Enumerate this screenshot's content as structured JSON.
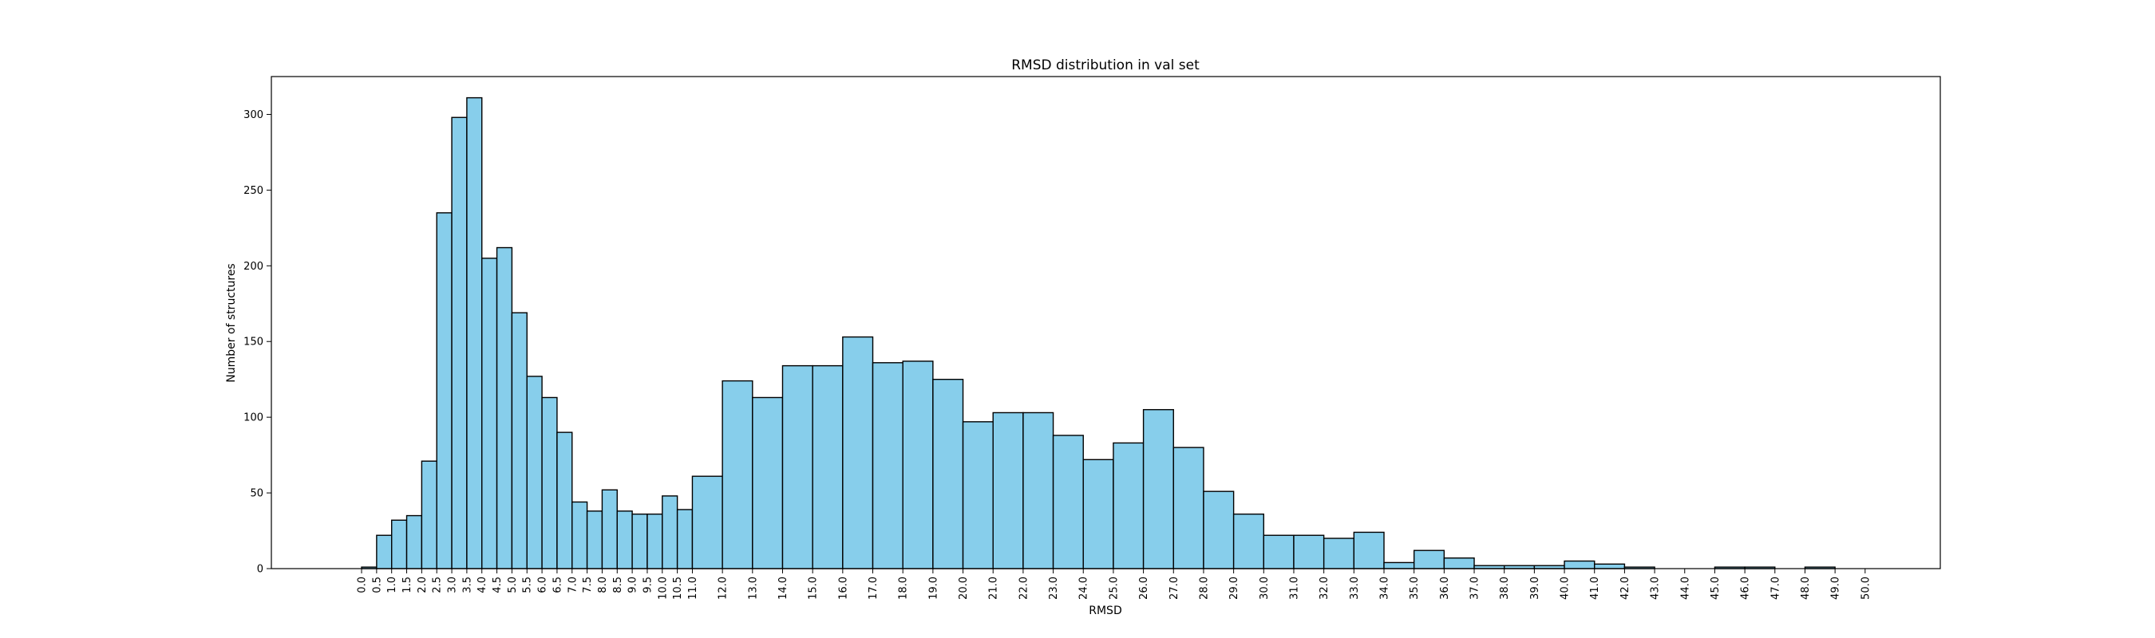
{
  "chart_data": {
    "type": "bar",
    "title": "RMSD distribution in val set",
    "xlabel": "RMSD",
    "ylabel": "Number of structures",
    "ylim": [
      0,
      325
    ],
    "xlim": [
      -3.0,
      52.5
    ],
    "grid": false,
    "y_ticks": [
      0,
      50,
      100,
      150,
      200,
      250,
      300
    ],
    "x_ticks": [
      0.0,
      0.5,
      1.0,
      1.5,
      2.0,
      2.5,
      3.0,
      3.5,
      4.0,
      4.5,
      5.0,
      5.5,
      6.0,
      6.5,
      7.0,
      7.5,
      8.0,
      8.5,
      9.0,
      9.5,
      10.0,
      10.5,
      11.0,
      12.0,
      13.0,
      14.0,
      15.0,
      16.0,
      17.0,
      18.0,
      19.0,
      20.0,
      21.0,
      22.0,
      23.0,
      24.0,
      25.0,
      26.0,
      27.0,
      28.0,
      29.0,
      30.0,
      31.0,
      32.0,
      33.0,
      34.0,
      35.0,
      36.0,
      37.0,
      38.0,
      39.0,
      40.0,
      41.0,
      42.0,
      43.0,
      44.0,
      45.0,
      46.0,
      47.0,
      48.0,
      49.0,
      50.0
    ],
    "bins": [
      {
        "start": 0.0,
        "end": 0.5,
        "value": 1
      },
      {
        "start": 0.5,
        "end": 1.0,
        "value": 22
      },
      {
        "start": 1.0,
        "end": 1.5,
        "value": 32
      },
      {
        "start": 1.5,
        "end": 2.0,
        "value": 35
      },
      {
        "start": 2.0,
        "end": 2.5,
        "value": 71
      },
      {
        "start": 2.5,
        "end": 3.0,
        "value": 235
      },
      {
        "start": 3.0,
        "end": 3.5,
        "value": 298
      },
      {
        "start": 3.5,
        "end": 4.0,
        "value": 311
      },
      {
        "start": 4.0,
        "end": 4.5,
        "value": 205
      },
      {
        "start": 4.5,
        "end": 5.0,
        "value": 212
      },
      {
        "start": 5.0,
        "end": 5.5,
        "value": 169
      },
      {
        "start": 5.5,
        "end": 6.0,
        "value": 127
      },
      {
        "start": 6.0,
        "end": 6.5,
        "value": 113
      },
      {
        "start": 6.5,
        "end": 7.0,
        "value": 90
      },
      {
        "start": 7.0,
        "end": 7.5,
        "value": 44
      },
      {
        "start": 7.5,
        "end": 8.0,
        "value": 38
      },
      {
        "start": 8.0,
        "end": 8.5,
        "value": 52
      },
      {
        "start": 8.5,
        "end": 9.0,
        "value": 38
      },
      {
        "start": 9.0,
        "end": 9.5,
        "value": 36
      },
      {
        "start": 9.5,
        "end": 10.0,
        "value": 36
      },
      {
        "start": 10.0,
        "end": 10.5,
        "value": 48
      },
      {
        "start": 10.5,
        "end": 11.0,
        "value": 39
      },
      {
        "start": 11.0,
        "end": 12.0,
        "value": 61
      },
      {
        "start": 12.0,
        "end": 13.0,
        "value": 124
      },
      {
        "start": 13.0,
        "end": 14.0,
        "value": 113
      },
      {
        "start": 14.0,
        "end": 15.0,
        "value": 134
      },
      {
        "start": 15.0,
        "end": 16.0,
        "value": 134
      },
      {
        "start": 16.0,
        "end": 17.0,
        "value": 153
      },
      {
        "start": 17.0,
        "end": 18.0,
        "value": 136
      },
      {
        "start": 18.0,
        "end": 19.0,
        "value": 137
      },
      {
        "start": 19.0,
        "end": 20.0,
        "value": 125
      },
      {
        "start": 20.0,
        "end": 21.0,
        "value": 97
      },
      {
        "start": 21.0,
        "end": 22.0,
        "value": 103
      },
      {
        "start": 22.0,
        "end": 23.0,
        "value": 103
      },
      {
        "start": 23.0,
        "end": 24.0,
        "value": 88
      },
      {
        "start": 24.0,
        "end": 25.0,
        "value": 72
      },
      {
        "start": 25.0,
        "end": 26.0,
        "value": 83
      },
      {
        "start": 26.0,
        "end": 27.0,
        "value": 105
      },
      {
        "start": 27.0,
        "end": 28.0,
        "value": 80
      },
      {
        "start": 28.0,
        "end": 29.0,
        "value": 51
      },
      {
        "start": 29.0,
        "end": 30.0,
        "value": 36
      },
      {
        "start": 30.0,
        "end": 31.0,
        "value": 22
      },
      {
        "start": 31.0,
        "end": 32.0,
        "value": 22
      },
      {
        "start": 32.0,
        "end": 33.0,
        "value": 20
      },
      {
        "start": 33.0,
        "end": 34.0,
        "value": 24
      },
      {
        "start": 34.0,
        "end": 35.0,
        "value": 4
      },
      {
        "start": 35.0,
        "end": 36.0,
        "value": 12
      },
      {
        "start": 36.0,
        "end": 37.0,
        "value": 7
      },
      {
        "start": 37.0,
        "end": 38.0,
        "value": 2
      },
      {
        "start": 38.0,
        "end": 39.0,
        "value": 2
      },
      {
        "start": 39.0,
        "end": 40.0,
        "value": 2
      },
      {
        "start": 40.0,
        "end": 41.0,
        "value": 5
      },
      {
        "start": 41.0,
        "end": 42.0,
        "value": 3
      },
      {
        "start": 42.0,
        "end": 43.0,
        "value": 1
      },
      {
        "start": 43.0,
        "end": 44.0,
        "value": 0
      },
      {
        "start": 44.0,
        "end": 45.0,
        "value": 0
      },
      {
        "start": 45.0,
        "end": 46.0,
        "value": 1
      },
      {
        "start": 46.0,
        "end": 47.0,
        "value": 1
      },
      {
        "start": 47.0,
        "end": 48.0,
        "value": 0
      },
      {
        "start": 48.0,
        "end": 49.0,
        "value": 1
      },
      {
        "start": 49.0,
        "end": 50.0,
        "value": 0
      }
    ],
    "colors": {
      "bar_fill": "#87ceeb",
      "bar_edge": "#000000"
    }
  }
}
